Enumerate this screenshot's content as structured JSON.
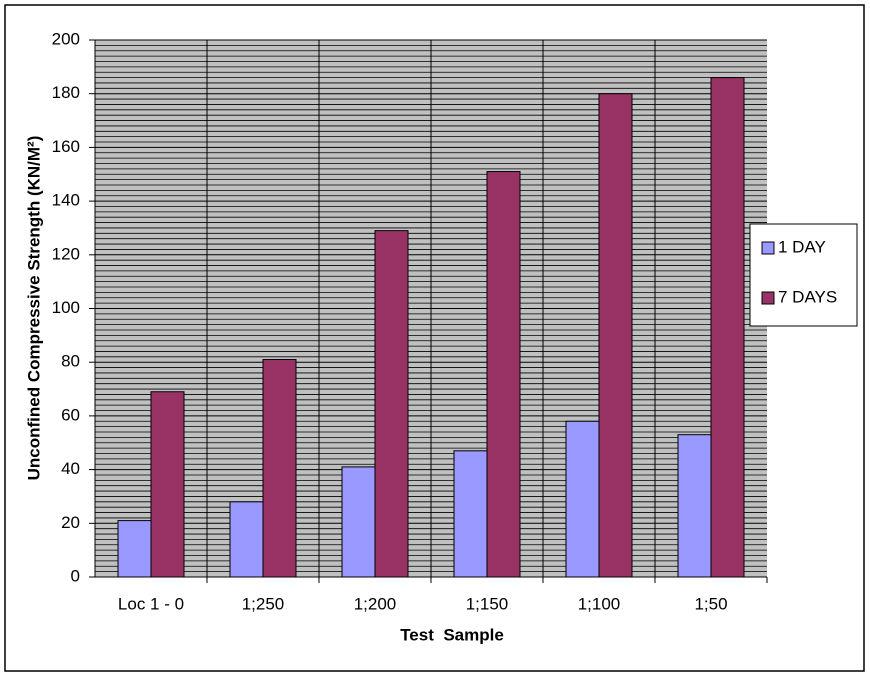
{
  "chart_data": {
    "type": "bar",
    "y_label": "Unconfined Compressive Strength (KN/M²)",
    "x_label": "Test  Sample",
    "categories": [
      "Loc 1 - 0",
      "1;250",
      "1;200",
      "1;150",
      "1;100",
      "1;50"
    ],
    "series": [
      {
        "name": "1 DAY",
        "color": "#9999ff",
        "values": [
          21,
          28,
          41,
          47,
          58,
          53
        ]
      },
      {
        "name": "7 DAYS",
        "color": "#993366",
        "values": [
          69,
          81,
          129,
          151,
          180,
          186
        ]
      }
    ],
    "ylim": [
      0,
      200
    ],
    "yticks": [
      0,
      20,
      40,
      60,
      80,
      100,
      120,
      140,
      160,
      180,
      200
    ],
    "grid": true,
    "legend": "right"
  }
}
